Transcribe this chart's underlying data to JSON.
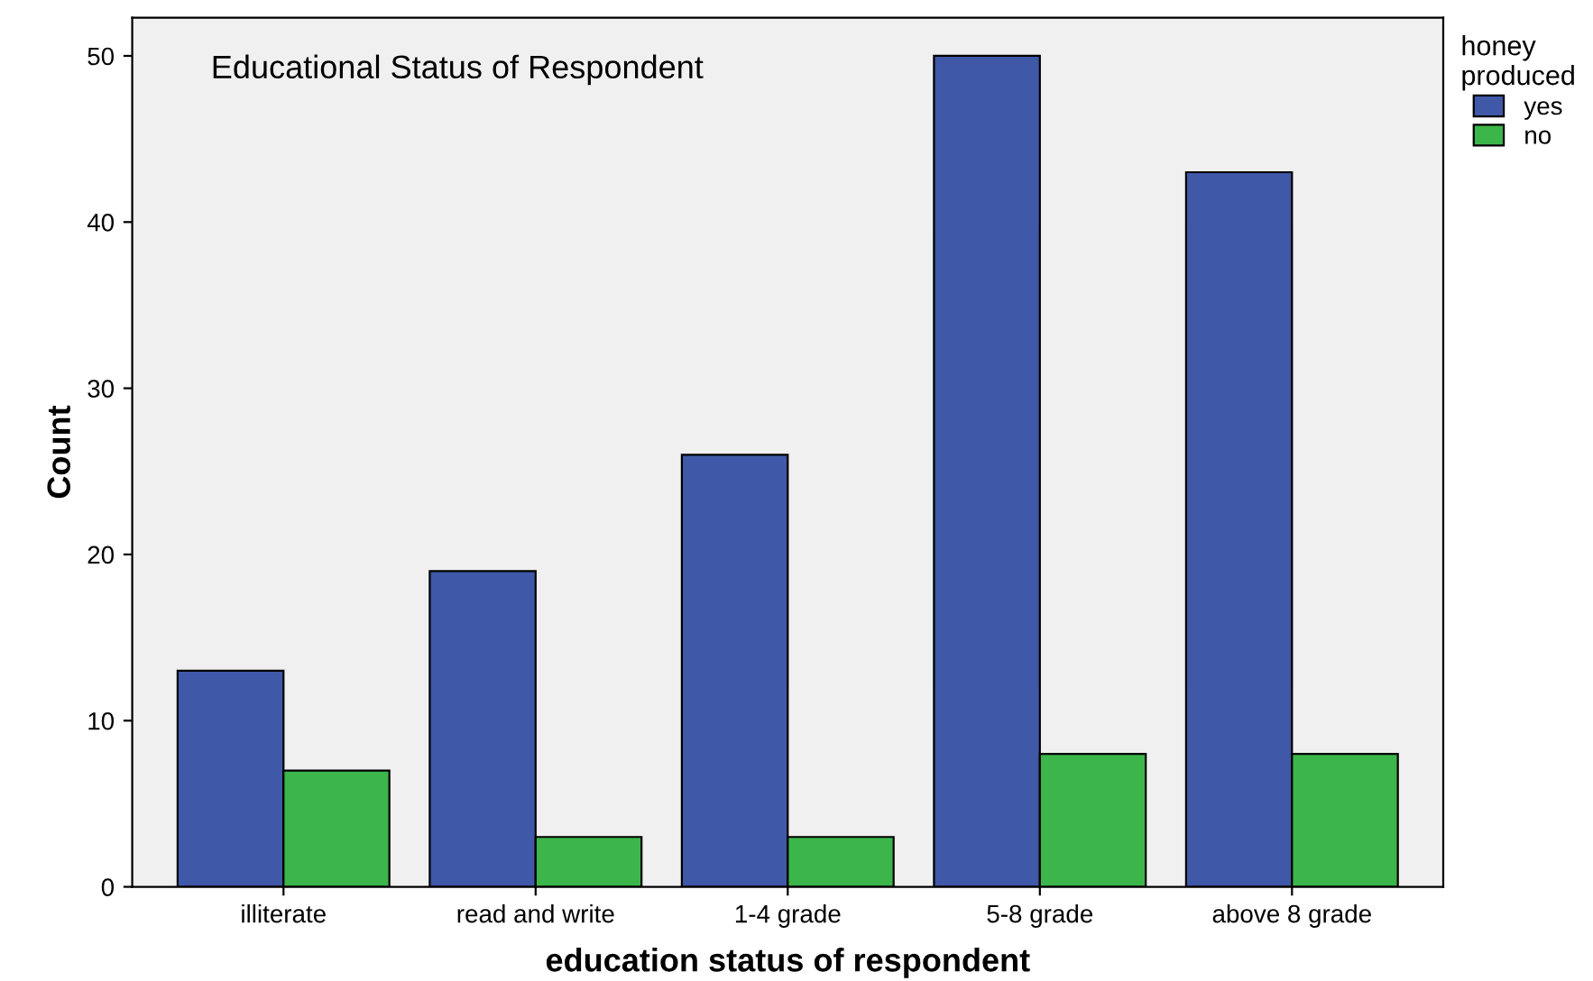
{
  "chart_data": {
    "type": "bar",
    "title": "Educational Status of Respondent",
    "xlabel": "education status of respondent",
    "ylabel": "Count",
    "legend_title": "honey produced",
    "categories": [
      "illiterate",
      "read and write",
      "1-4 grade",
      "5-8 grade",
      "above 8 grade"
    ],
    "series": [
      {
        "name": "yes",
        "color": "#3f58a8",
        "values": [
          13,
          19,
          26,
          50,
          43
        ]
      },
      {
        "name": "no",
        "color": "#3cb54a",
        "values": [
          7,
          3,
          3,
          8,
          8
        ]
      }
    ],
    "ylim": [
      0,
      52.3
    ],
    "yticks": [
      0,
      10,
      20,
      30,
      40,
      50
    ],
    "grid": false,
    "legend": "top right"
  }
}
